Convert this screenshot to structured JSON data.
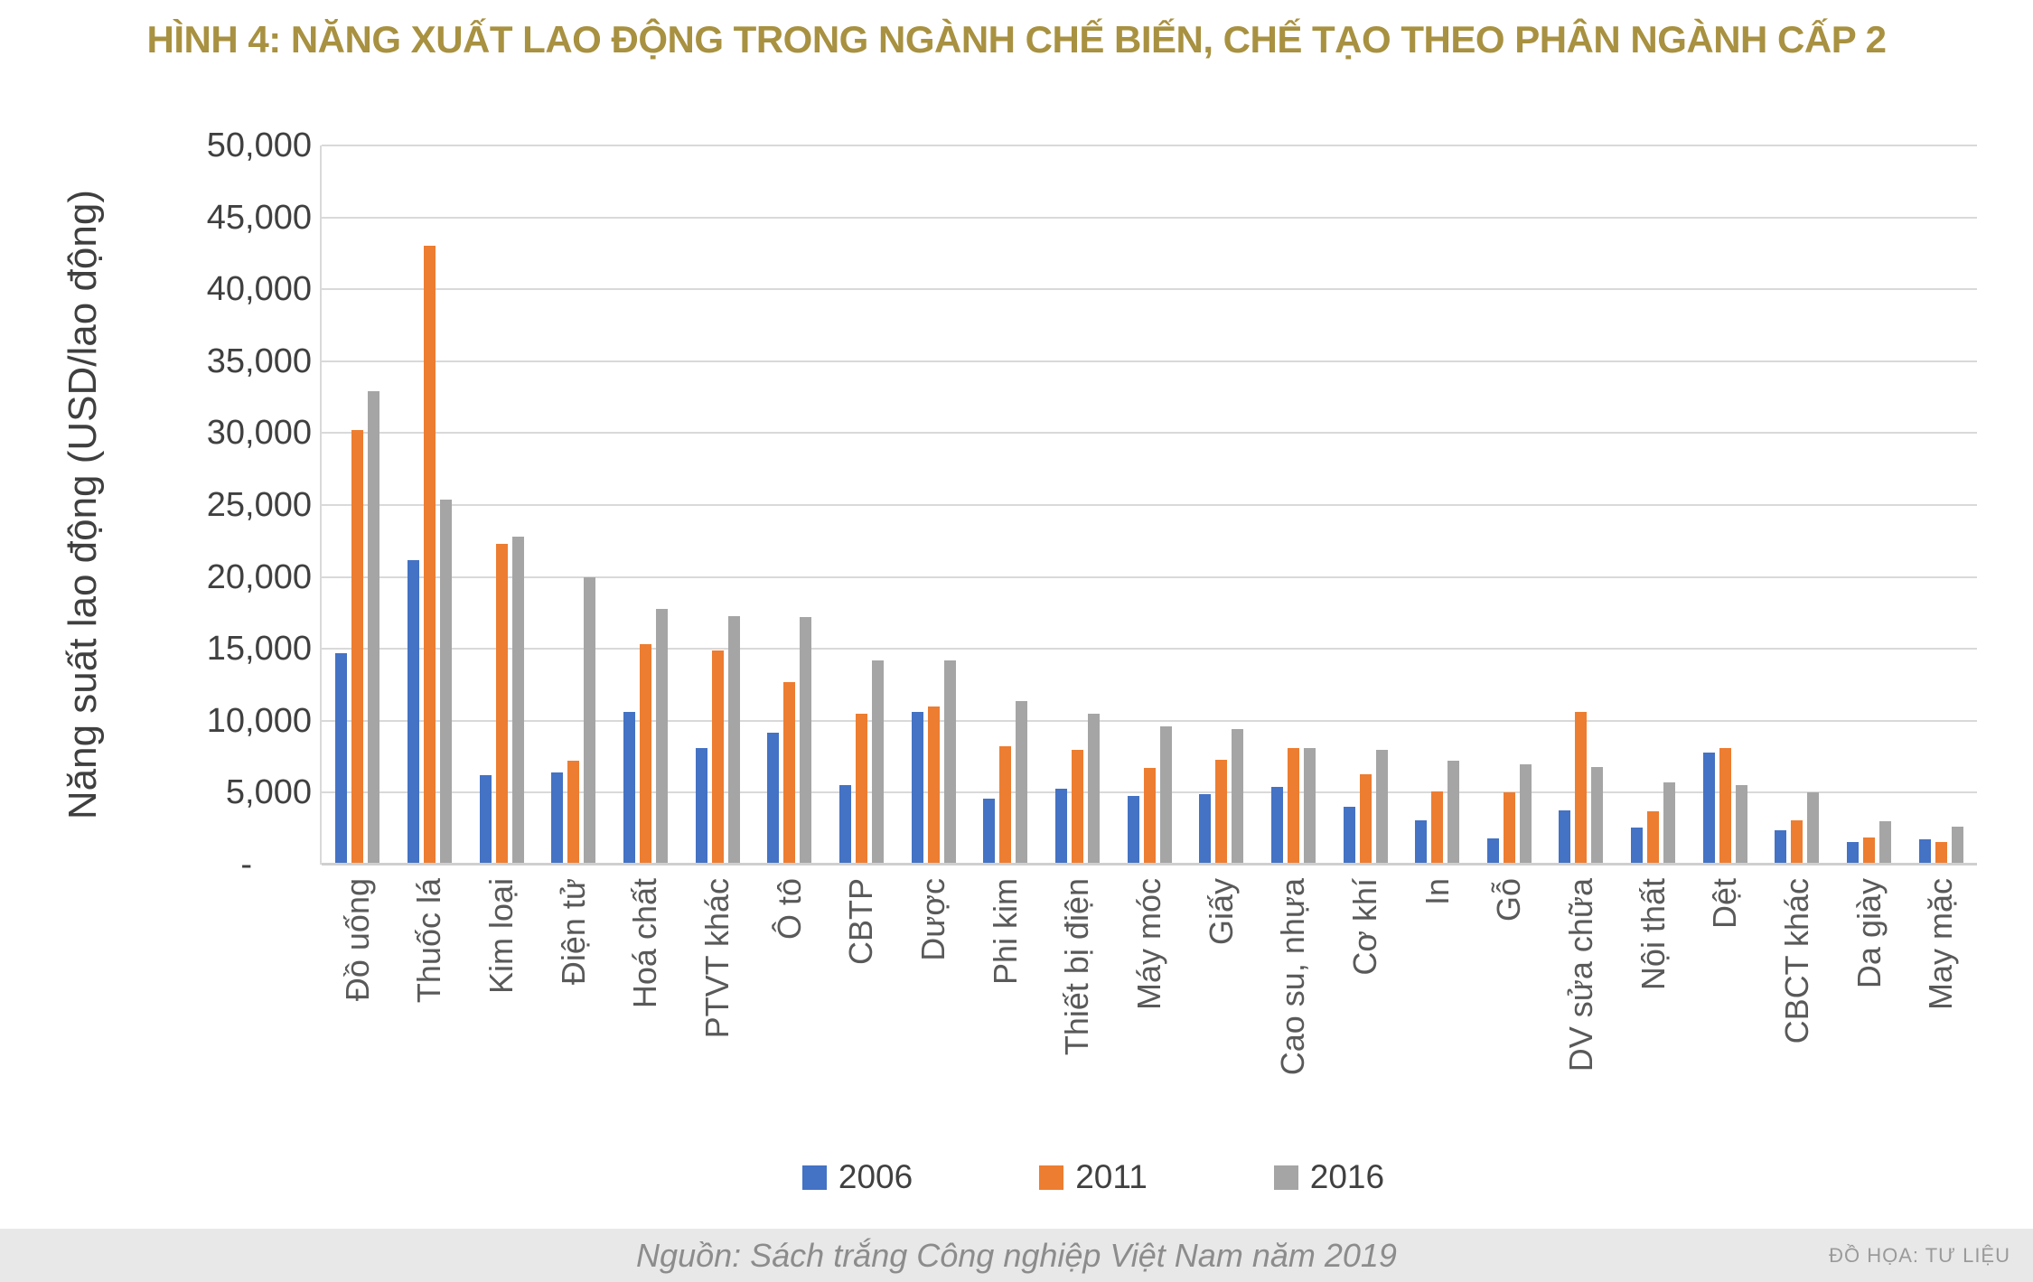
{
  "footer": {
    "source": "Nguồn: Sách trắng Công nghiệp Việt Nam năm 2019",
    "credit": "ĐỒ HỌA:  TƯ LIỆU"
  },
  "colors": {
    "title": "#A89140",
    "series_2006": "#4472C4",
    "series_2011": "#ED7D31",
    "series_2016": "#A5A5A5",
    "gridline": "#D9D9D9",
    "axis_text": "#404040",
    "category_text": "#595959",
    "footer_band": "#E8E8E8"
  },
  "chart_data": {
    "type": "bar",
    "title": "HÌNH 4: NĂNG XUẤT LAO ĐỘNG TRONG NGÀNH CHẾ BIẾN, CHẾ TẠO THEO PHÂN NGÀNH CẤP 2",
    "ylabel": "Năng suất lao động (USD/lao động)",
    "xlabel": "",
    "ylim": [
      0,
      50000
    ],
    "ytick_step": 5000,
    "zero_tick_label": "-",
    "grid": true,
    "legend_position": "bottom",
    "categories": [
      "Đồ uống",
      "Thuốc lá",
      "Kim loại",
      "Điện tử",
      "Hoá chất",
      "PTVT khác",
      "Ô tô",
      "CBTP",
      "Dược",
      "Phi kim",
      "Thiết bị điện",
      "Máy móc",
      "Giấy",
      "Cao su, nhựa",
      "Cơ khí",
      "In",
      "Gỗ",
      "DV sửa chữa",
      "Nội thất",
      "Dệt",
      "CBCT khác",
      "Da giày",
      "May mặc"
    ],
    "series": [
      {
        "name": "2006",
        "color": "#4472C4",
        "values": [
          14700,
          21200,
          6250,
          6400,
          10600,
          8100,
          9200,
          5500,
          10600,
          4600,
          5300,
          4800,
          4900,
          5400,
          4000,
          3100,
          1800,
          3800,
          2600,
          7800,
          2400,
          1600,
          1750
        ]
      },
      {
        "name": "2011",
        "color": "#ED7D31",
        "values": [
          30200,
          43000,
          22300,
          7200,
          15300,
          14900,
          12700,
          10500,
          11000,
          8200,
          8000,
          6700,
          7300,
          8100,
          6300,
          5100,
          5000,
          10600,
          3700,
          8100,
          3100,
          1900,
          1600
        ]
      },
      {
        "name": "2016",
        "color": "#A5A5A5",
        "values": [
          32900,
          25400,
          22800,
          20000,
          17800,
          17300,
          17200,
          14200,
          14200,
          11400,
          10500,
          9600,
          9400,
          8100,
          8000,
          7200,
          7000,
          6800,
          5700,
          5500,
          5000,
          3000,
          2650
        ]
      }
    ]
  }
}
